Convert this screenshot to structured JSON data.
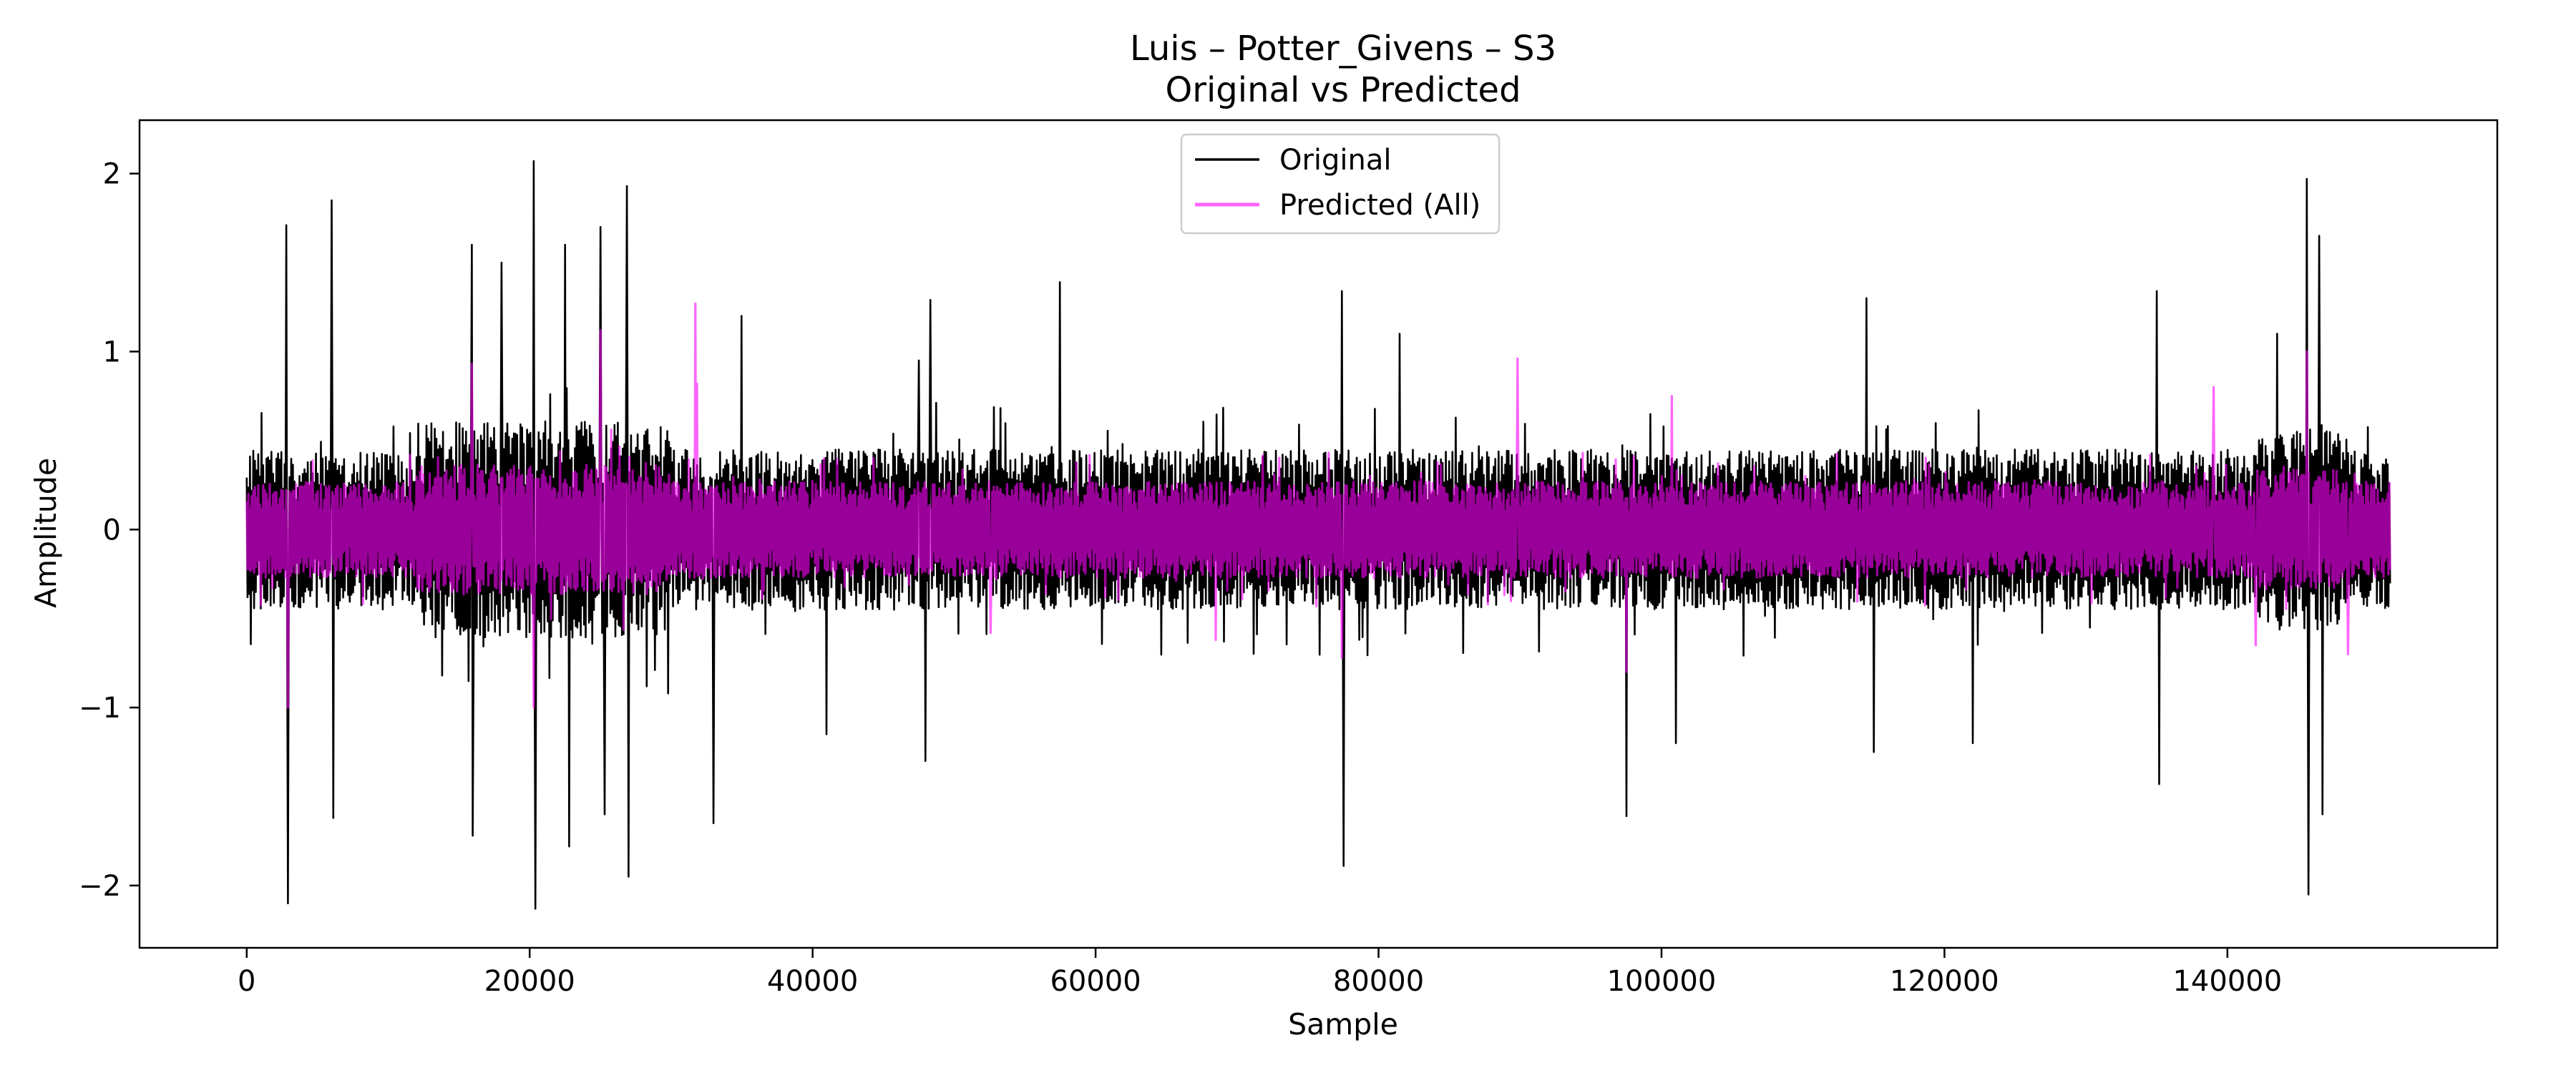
{
  "chart_data": {
    "type": "line",
    "title": "Luis – Potter_Givens – S3",
    "subtitle": "Original vs Predicted",
    "xlabel": "Sample",
    "ylabel": "Amplitude",
    "xlim": [
      -7575,
      159075
    ],
    "ylim": [
      -2.35,
      2.3
    ],
    "xticks": [
      0,
      20000,
      40000,
      60000,
      80000,
      100000,
      120000,
      140000
    ],
    "xtick_labels": [
      "0",
      "20000",
      "40000",
      "60000",
      "80000",
      "100000",
      "120000",
      "140000"
    ],
    "yticks": [
      -2,
      -1,
      0,
      1,
      2
    ],
    "ytick_labels": [
      "−2",
      "−1",
      "0",
      "1",
      "2"
    ],
    "grid": false,
    "legend_position": "top-center",
    "x_range": [
      0,
      151500
    ],
    "series": [
      {
        "name": "Original",
        "color": "#000000",
        "baseline_amplitude": 0.45,
        "peaks": [
          {
            "x": 2800,
            "y": 1.71
          },
          {
            "x": 2900,
            "y": -2.1
          },
          {
            "x": 6000,
            "y": 1.85
          },
          {
            "x": 6100,
            "y": -1.62
          },
          {
            "x": 15900,
            "y": 1.6
          },
          {
            "x": 15950,
            "y": -1.72
          },
          {
            "x": 18000,
            "y": 1.5
          },
          {
            "x": 20300,
            "y": 2.07
          },
          {
            "x": 20400,
            "y": -2.13
          },
          {
            "x": 22500,
            "y": 1.6
          },
          {
            "x": 22800,
            "y": -1.78
          },
          {
            "x": 25000,
            "y": 1.7
          },
          {
            "x": 25300,
            "y": -1.6
          },
          {
            "x": 26900,
            "y": 1.93
          },
          {
            "x": 27000,
            "y": -1.95
          },
          {
            "x": 29800,
            "y": -0.92
          },
          {
            "x": 33000,
            "y": -1.65
          },
          {
            "x": 35000,
            "y": 1.2
          },
          {
            "x": 41000,
            "y": -1.15
          },
          {
            "x": 47500,
            "y": 0.95
          },
          {
            "x": 48000,
            "y": -1.3
          },
          {
            "x": 48300,
            "y": 1.29
          },
          {
            "x": 57500,
            "y": 1.39
          },
          {
            "x": 77400,
            "y": 1.34
          },
          {
            "x": 77500,
            "y": -1.89
          },
          {
            "x": 81500,
            "y": 1.1
          },
          {
            "x": 97500,
            "y": -1.61
          },
          {
            "x": 101000,
            "y": -1.2
          },
          {
            "x": 114500,
            "y": 1.3
          },
          {
            "x": 115000,
            "y": -1.25
          },
          {
            "x": 122000,
            "y": -1.2
          },
          {
            "x": 135000,
            "y": 1.34
          },
          {
            "x": 135200,
            "y": -1.43
          },
          {
            "x": 145600,
            "y": 1.97
          },
          {
            "x": 145700,
            "y": -2.05
          },
          {
            "x": 146500,
            "y": 1.65
          },
          {
            "x": 146700,
            "y": -1.6
          },
          {
            "x": 143500,
            "y": 1.1
          }
        ]
      },
      {
        "name": "Predicted (All)",
        "color": "#FF00FF",
        "opacity": 0.6,
        "baseline_amplitude": 0.27,
        "peaks": [
          {
            "x": 2900,
            "y": -1.0
          },
          {
            "x": 15900,
            "y": 0.93
          },
          {
            "x": 20300,
            "y": -1.0
          },
          {
            "x": 25000,
            "y": 1.12
          },
          {
            "x": 31700,
            "y": 1.27
          },
          {
            "x": 31800,
            "y": 0.82
          },
          {
            "x": 52600,
            "y": -0.58
          },
          {
            "x": 68500,
            "y": -0.62
          },
          {
            "x": 77400,
            "y": -0.72
          },
          {
            "x": 89800,
            "y": 0.96
          },
          {
            "x": 97500,
            "y": -0.8
          },
          {
            "x": 100700,
            "y": 0.75
          },
          {
            "x": 139000,
            "y": 0.8
          },
          {
            "x": 142000,
            "y": -0.65
          },
          {
            "x": 145600,
            "y": 1.0
          },
          {
            "x": 148500,
            "y": -0.7
          }
        ]
      }
    ]
  }
}
